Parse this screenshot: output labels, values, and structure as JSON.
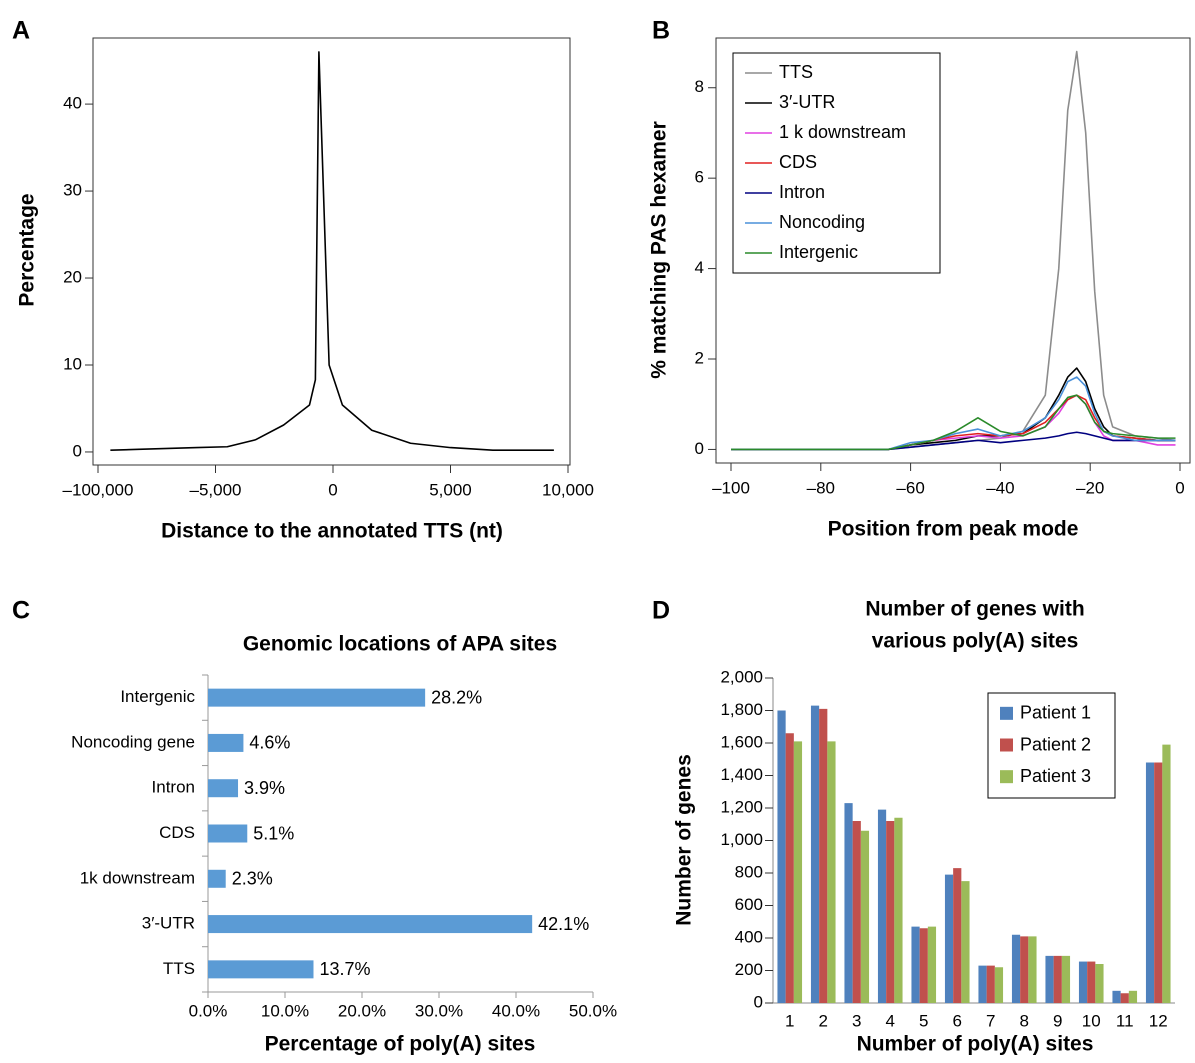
{
  "chart_data": [
    {
      "panel": "A",
      "type": "line",
      "x_label": "Distance to the annotated TTS (nt)",
      "y_label": "Percentage",
      "x": [
        -90000,
        -67000,
        -20000,
        -4500,
        -3300,
        -2100,
        -1000,
        -750,
        -600,
        -165,
        400,
        1650,
        3300,
        5000,
        6800,
        9400
      ],
      "values": [
        0.2,
        0.3,
        0.5,
        0.6,
        1.4,
        3.1,
        5.4,
        8.3,
        46,
        10,
        5.4,
        2.5,
        1.0,
        0.5,
        0.2,
        0.2
      ],
      "color": "#000000",
      "x_scale": "piecewise",
      "xlim": [
        -100000,
        10000
      ],
      "xticks": [
        {
          "value": -100000,
          "label": "–100,000"
        },
        {
          "value": -5000,
          "label": "–5,000"
        },
        0,
        {
          "value": 5000,
          "label": "5,000"
        },
        {
          "value": 10000,
          "label": "10,000"
        }
      ],
      "ylim": [
        -1.5,
        47.6
      ],
      "yticks": [
        0,
        10,
        20,
        30,
        40
      ]
    },
    {
      "panel": "B",
      "type": "line",
      "x_label": "Position from peak mode",
      "y_label": "% matching PAS hexamer",
      "x": [
        -100,
        -65,
        -60,
        -55,
        -50,
        -45,
        -40,
        -35,
        -30,
        -27,
        -25,
        -23,
        -21,
        -19,
        -17,
        -15,
        -10,
        -5,
        -1
      ],
      "series": [
        {
          "name": "TTS",
          "color": "#8c8c8c",
          "values": [
            0,
            0,
            0.05,
            0.1,
            0.15,
            0.2,
            0.25,
            0.4,
            1.2,
            4,
            7.5,
            8.8,
            7,
            3.5,
            1.2,
            0.5,
            0.3,
            0.25,
            0.2
          ]
        },
        {
          "name": "3′-UTR",
          "color": "#000000",
          "values": [
            0,
            0,
            0.1,
            0.15,
            0.2,
            0.3,
            0.3,
            0.35,
            0.7,
            1.2,
            1.6,
            1.8,
            1.5,
            0.9,
            0.5,
            0.3,
            0.25,
            0.2,
            0.2
          ]
        },
        {
          "name": "1 k downstream",
          "color": "#e040e0",
          "values": [
            0,
            0,
            0.1,
            0.2,
            0.25,
            0.3,
            0.25,
            0.3,
            0.5,
            0.8,
            1.1,
            1.2,
            1.0,
            0.6,
            0.3,
            0.2,
            0.2,
            0.1,
            0.1
          ]
        },
        {
          "name": "CDS",
          "color": "#e02020",
          "values": [
            0,
            0,
            0.1,
            0.2,
            0.3,
            0.35,
            0.3,
            0.35,
            0.6,
            0.9,
            1.1,
            1.2,
            1.1,
            0.7,
            0.4,
            0.3,
            0.25,
            0.2,
            0.2
          ]
        },
        {
          "name": "Intron",
          "color": "#000080",
          "values": [
            0,
            0,
            0.05,
            0.1,
            0.15,
            0.2,
            0.15,
            0.2,
            0.25,
            0.3,
            0.35,
            0.38,
            0.35,
            0.3,
            0.25,
            0.2,
            0.2,
            0.2,
            0.2
          ]
        },
        {
          "name": "Noncoding",
          "color": "#4a90d9",
          "values": [
            0,
            0,
            0.15,
            0.2,
            0.35,
            0.45,
            0.3,
            0.4,
            0.7,
            1.1,
            1.5,
            1.6,
            1.4,
            0.8,
            0.4,
            0.3,
            0.2,
            0.2,
            0.2
          ]
        },
        {
          "name": "Intergenic",
          "color": "#2a8a2a",
          "values": [
            0,
            0,
            0.1,
            0.2,
            0.4,
            0.7,
            0.4,
            0.3,
            0.5,
            0.9,
            1.15,
            1.2,
            1.0,
            0.6,
            0.4,
            0.35,
            0.3,
            0.25,
            0.25
          ]
        }
      ],
      "legend": "upper left",
      "xlim": [
        -100,
        0
      ],
      "xticks": [
        {
          "value": -100,
          "label": "–100"
        },
        {
          "value": -80,
          "label": "–80"
        },
        {
          "value": -60,
          "label": "–60"
        },
        {
          "value": -40,
          "label": "–40"
        },
        {
          "value": -20,
          "label": "–20"
        },
        0
      ],
      "ylim": [
        -0.3,
        9.1
      ],
      "yticks": [
        0,
        2,
        4,
        6,
        8
      ]
    },
    {
      "panel": "C",
      "type": "barh",
      "title": "Genomic locations of APA sites",
      "x_label": "Percentage of poly(A) sites",
      "categories": [
        "Intergenic",
        "Noncoding gene",
        "Intron",
        "CDS",
        "1k downstream",
        "3′-UTR",
        "TTS"
      ],
      "values": [
        28.2,
        4.6,
        3.9,
        5.1,
        2.3,
        42.1,
        13.7
      ],
      "value_labels": [
        "28.2%",
        "4.6%",
        "3.9%",
        "5.1%",
        "2.3%",
        "42.1%",
        "13.7%"
      ],
      "color": "#5b9bd5",
      "xlim": [
        0,
        50
      ],
      "xticks": [
        {
          "value": 0,
          "label": "0.0%"
        },
        {
          "value": 10,
          "label": "10.0%"
        },
        {
          "value": 20,
          "label": "20.0%"
        },
        {
          "value": 30,
          "label": "30.0%"
        },
        {
          "value": 40,
          "label": "40.0%"
        },
        {
          "value": 50,
          "label": "50.0%"
        }
      ]
    },
    {
      "panel": "D",
      "type": "bar",
      "title": [
        "Number of genes with",
        "various poly(A) sites"
      ],
      "x_label": "Number of poly(A) sites",
      "y_label": "Number of genes",
      "categories": [
        "1",
        "2",
        "3",
        "4",
        "5",
        "6",
        "7",
        "8",
        "9",
        "10",
        "11",
        "12"
      ],
      "series": [
        {
          "name": "Patient 1",
          "color": "#4f81bd",
          "values": [
            1800,
            1830,
            1230,
            1190,
            470,
            790,
            230,
            420,
            290,
            255,
            75,
            1480
          ]
        },
        {
          "name": "Patient 2",
          "color": "#c0504d",
          "values": [
            1660,
            1810,
            1120,
            1120,
            460,
            830,
            230,
            410,
            290,
            255,
            60,
            1480
          ]
        },
        {
          "name": "Patient 3",
          "color": "#9bbb59",
          "values": [
            1610,
            1610,
            1060,
            1140,
            470,
            750,
            220,
            410,
            290,
            240,
            75,
            1590
          ]
        }
      ],
      "legend": "upper right",
      "ylim": [
        0,
        2000
      ],
      "yticks": [
        0,
        200,
        400,
        600,
        800,
        {
          "value": 1000,
          "label": "1,000"
        },
        {
          "value": 1200,
          "label": "1,200"
        },
        {
          "value": 1400,
          "label": "1,400"
        },
        {
          "value": 1600,
          "label": "1,600"
        },
        {
          "value": 1800,
          "label": "1,800"
        },
        {
          "value": 2000,
          "label": "2,000"
        }
      ]
    }
  ]
}
